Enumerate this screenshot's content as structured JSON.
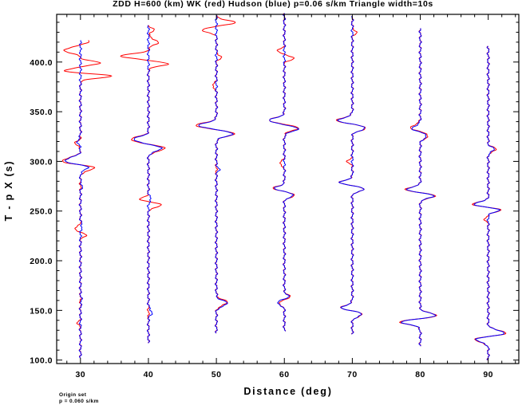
{
  "chart_data": {
    "type": "line",
    "title": "ZDD H=600 (km) WK (red) Hudson (blue) p=0.06 s/km Triangle width=10s",
    "xlabel": "Distance (deg)",
    "ylabel": "T - p X (s)",
    "xlim": [
      26.5,
      94.5
    ],
    "ylim": [
      96.5,
      448
    ],
    "x_ticks": [
      30,
      40,
      50,
      60,
      70,
      80,
      90
    ],
    "x_tick_labels": [
      "30",
      "40",
      "50",
      "60",
      "70",
      "80",
      "90"
    ],
    "y_ticks": [
      100,
      150,
      200,
      250,
      300,
      350,
      400
    ],
    "y_tick_labels": [
      "100.0",
      "150.0",
      "200.0",
      "250.0",
      "300.0",
      "350.0",
      "400.0"
    ],
    "grid": false,
    "legend": "none",
    "colors": {
      "WK": "#ff0000",
      "Hudson": "#0000ff",
      "axes": "#000000"
    },
    "series_note": "Each trace is plotted as a wiggle centered on its distance; amplitude is in degrees of horizontal deflection.",
    "traces": [
      {
        "distance": 30,
        "t_start": 102,
        "t_end": 422,
        "blue": [
          [
            300,
            -2.6,
            5
          ],
          [
            295,
            1.8,
            4
          ],
          [
            320,
            -0.4,
            4
          ],
          [
            275,
            0.25,
            3
          ],
          [
            235,
            0.2,
            4
          ],
          [
            160,
            0.15,
            5
          ]
        ],
        "red": [
          [
            300,
            -2.9,
            5
          ],
          [
            294,
            2.6,
            4
          ],
          [
            391,
            -2.6,
            3
          ],
          [
            386,
            4.6,
            3
          ],
          [
            399,
            2.8,
            3
          ],
          [
            412,
            -2.4,
            4
          ],
          [
            421,
            1.2,
            4
          ],
          [
            232,
            -0.9,
            3
          ],
          [
            226,
            0.8,
            3
          ],
          [
            318,
            -0.8,
            3
          ],
          [
            137,
            -0.4,
            3
          ]
        ]
      },
      {
        "distance": 40,
        "t_start": 117,
        "t_end": 437,
        "blue": [
          [
            322,
            -2.2,
            4
          ],
          [
            313,
            1.9,
            4
          ],
          [
            262,
            0.4,
            3
          ],
          [
            148,
            0.5,
            4
          ]
        ],
        "red": [
          [
            322,
            -2.6,
            4
          ],
          [
            313,
            2.4,
            4
          ],
          [
            406,
            -4.2,
            3
          ],
          [
            398,
            2.8,
            3
          ],
          [
            420,
            1.4,
            4
          ],
          [
            262,
            -1.2,
            3
          ],
          [
            256,
            2.0,
            3
          ],
          [
            432,
            0.8,
            3
          ]
        ]
      },
      {
        "distance": 50,
        "t_start": 127,
        "t_end": 447,
        "blue": [
          [
            336,
            -2.6,
            4
          ],
          [
            328,
            2.4,
            4
          ],
          [
            157,
            1.6,
            4
          ],
          [
            292,
            0.4,
            3
          ]
        ],
        "red": [
          [
            336,
            -3.0,
            4
          ],
          [
            328,
            2.6,
            4
          ],
          [
            432,
            -2.2,
            3
          ],
          [
            440,
            2.8,
            3
          ],
          [
            405,
            0.7,
            3
          ],
          [
            158,
            1.6,
            4
          ],
          [
            376,
            -0.6,
            3
          ]
        ]
      },
      {
        "distance": 60,
        "t_start": 129,
        "t_end": 449,
        "blue": [
          [
            341,
            -2.2,
            4
          ],
          [
            333,
            2.0,
            4
          ],
          [
            273,
            -1.4,
            3
          ],
          [
            266,
            1.4,
            3
          ],
          [
            159,
            -1.6,
            4
          ],
          [
            162,
            1.2,
            4
          ]
        ],
        "red": [
          [
            341,
            -2.3,
            4
          ],
          [
            334,
            2.1,
            4
          ],
          [
            273,
            -1.6,
            3
          ],
          [
            266,
            1.6,
            3
          ],
          [
            404,
            1.4,
            3
          ],
          [
            411,
            -1.0,
            3
          ],
          [
            159,
            -1.4,
            4
          ],
          [
            162,
            1.4,
            4
          ],
          [
            298,
            -0.7,
            3
          ]
        ]
      },
      {
        "distance": 70,
        "t_start": 126,
        "t_end": 446,
        "blue": [
          [
            341,
            -2.1,
            4
          ],
          [
            334,
            2.0,
            4
          ],
          [
            279,
            -1.8,
            3
          ],
          [
            272,
            1.8,
            3
          ],
          [
            152,
            -1.8,
            4
          ],
          [
            147,
            1.7,
            4
          ]
        ],
        "red": [
          [
            341,
            -2.3,
            4
          ],
          [
            334,
            2.1,
            4
          ],
          [
            279,
            -1.8,
            3
          ],
          [
            272,
            1.8,
            3
          ],
          [
            152,
            -1.9,
            4
          ],
          [
            147,
            1.8,
            4
          ],
          [
            300,
            -0.7,
            3
          ],
          [
            430,
            0.6,
            3
          ]
        ]
      },
      {
        "distance": 80,
        "t_start": 114,
        "t_end": 434,
        "blue": [
          [
            272,
            -2.0,
            3
          ],
          [
            265,
            2.0,
            3
          ],
          [
            144,
            2.8,
            4
          ],
          [
            139,
            -3.2,
            4
          ],
          [
            333,
            -1.2,
            4
          ],
          [
            326,
            1.0,
            4
          ]
        ],
        "red": [
          [
            272,
            -2.2,
            3
          ],
          [
            265,
            2.2,
            3
          ],
          [
            144,
            3.0,
            4
          ],
          [
            139,
            -3.4,
            4
          ],
          [
            334,
            -1.4,
            4
          ],
          [
            326,
            1.2,
            4
          ]
        ]
      },
      {
        "distance": 90,
        "t_start": 100,
        "t_end": 416,
        "blue": [
          [
            257,
            -2.2,
            3
          ],
          [
            251,
            1.6,
            3
          ],
          [
            127,
            2.6,
            4
          ],
          [
            121,
            -2.0,
            4
          ],
          [
            312,
            0.9,
            3
          ]
        ],
        "red": [
          [
            257,
            -2.4,
            3
          ],
          [
            251,
            1.8,
            3
          ],
          [
            127,
            2.8,
            4
          ],
          [
            121,
            -2.2,
            4
          ],
          [
            312,
            1.2,
            3
          ],
          [
            242,
            -0.5,
            3
          ]
        ]
      }
    ]
  },
  "footnote": {
    "line1": "Origin set",
    "line2": "p = 0.060 s/km"
  }
}
